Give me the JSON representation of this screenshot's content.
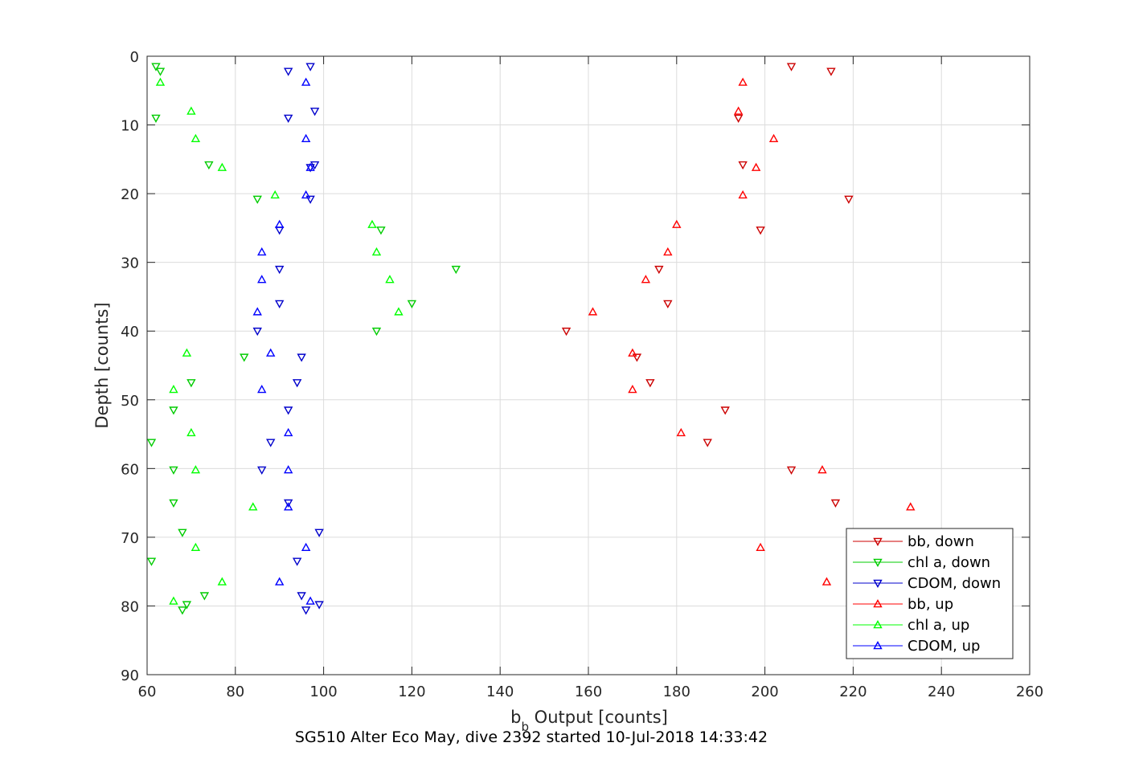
{
  "chart_data": {
    "type": "scatter",
    "title": "SG510 Alter Eco May, dive 2392 started 10-Jul-2018 14:33:42",
    "xlabel_main": "b",
    "xlabel_sub": "b",
    "xlabel_rest": " Output [counts]",
    "ylabel": "Depth [counts]",
    "xlim": [
      60,
      260
    ],
    "ylim": [
      0,
      90
    ],
    "y_reversed": true,
    "grid": true,
    "legend_position": "bottom-right",
    "xticks": [
      60,
      80,
      100,
      120,
      140,
      160,
      180,
      200,
      220,
      240,
      260
    ],
    "yticks": [
      0,
      10,
      20,
      30,
      40,
      50,
      60,
      70,
      80,
      90
    ],
    "series": [
      {
        "name": "bb, down",
        "color": "#cc0000",
        "marker": "triangle-down",
        "points": [
          [
            206,
            1.5
          ],
          [
            215,
            2.2
          ],
          [
            194,
            9
          ],
          [
            195,
            15.8
          ],
          [
            219,
            20.8
          ],
          [
            199,
            25.3
          ],
          [
            176,
            31
          ],
          [
            178,
            36
          ],
          [
            155,
            40
          ],
          [
            171,
            43.8
          ],
          [
            174,
            47.5
          ],
          [
            191,
            51.5
          ],
          [
            187,
            56.2
          ],
          [
            206,
            60.2
          ],
          [
            216,
            65
          ]
        ]
      },
      {
        "name": "chl a, down",
        "color": "#00cc00",
        "marker": "triangle-down",
        "points": [
          [
            62,
            1.5
          ],
          [
            63,
            2.2
          ],
          [
            62,
            9
          ],
          [
            74,
            15.8
          ],
          [
            85,
            20.8
          ],
          [
            113,
            25.3
          ],
          [
            130,
            31
          ],
          [
            120,
            36
          ],
          [
            112,
            40
          ],
          [
            82,
            43.8
          ],
          [
            70,
            47.5
          ],
          [
            66,
            51.5
          ],
          [
            61,
            56.2
          ],
          [
            66,
            60.2
          ],
          [
            66,
            65
          ],
          [
            68,
            69.3
          ],
          [
            61,
            73.5
          ],
          [
            73,
            78.5
          ],
          [
            69,
            79.8
          ],
          [
            68,
            80.6
          ]
        ]
      },
      {
        "name": "CDOM, down",
        "color": "#0000cc",
        "marker": "triangle-down",
        "points": [
          [
            97,
            1.5
          ],
          [
            92,
            2.2
          ],
          [
            98,
            8
          ],
          [
            92,
            9
          ],
          [
            98,
            15.8
          ],
          [
            97,
            16.2
          ],
          [
            97,
            20.8
          ],
          [
            90,
            25.3
          ],
          [
            90,
            31
          ],
          [
            90,
            36
          ],
          [
            85,
            40
          ],
          [
            95,
            43.8
          ],
          [
            94,
            47.5
          ],
          [
            92,
            51.5
          ],
          [
            88,
            56.2
          ],
          [
            86,
            60.2
          ],
          [
            92,
            65
          ],
          [
            99,
            69.3
          ],
          [
            94,
            73.5
          ],
          [
            95,
            78.5
          ],
          [
            99,
            79.8
          ],
          [
            96,
            80.6
          ]
        ]
      },
      {
        "name": "bb, up",
        "color": "#ff0000",
        "marker": "triangle-up",
        "points": [
          [
            195,
            3.8
          ],
          [
            194,
            8
          ],
          [
            202,
            12
          ],
          [
            198,
            16.2
          ],
          [
            195,
            20.2
          ],
          [
            180,
            24.5
          ],
          [
            178,
            28.5
          ],
          [
            173,
            32.5
          ],
          [
            161,
            37.2
          ],
          [
            170,
            43.2
          ],
          [
            170,
            48.5
          ],
          [
            181,
            54.8
          ],
          [
            213,
            60.2
          ],
          [
            233,
            65.6
          ],
          [
            199,
            71.5
          ],
          [
            214,
            76.5
          ]
        ]
      },
      {
        "name": "chl a, up",
        "color": "#00ff00",
        "marker": "triangle-up",
        "points": [
          [
            63,
            3.8
          ],
          [
            70,
            8
          ],
          [
            71,
            12
          ],
          [
            77,
            16.2
          ],
          [
            89,
            20.2
          ],
          [
            111,
            24.5
          ],
          [
            112,
            28.5
          ],
          [
            115,
            32.5
          ],
          [
            117,
            37.2
          ],
          [
            69,
            43.2
          ],
          [
            66,
            48.5
          ],
          [
            70,
            54.8
          ],
          [
            71,
            60.2
          ],
          [
            84,
            65.6
          ],
          [
            71,
            71.5
          ],
          [
            77,
            76.5
          ],
          [
            66,
            79.3
          ]
        ]
      },
      {
        "name": "CDOM, up",
        "color": "#0000ff",
        "marker": "triangle-up",
        "points": [
          [
            96,
            3.8
          ],
          [
            96,
            12
          ],
          [
            97,
            16.2
          ],
          [
            96,
            20.2
          ],
          [
            90,
            24.5
          ],
          [
            86,
            28.5
          ],
          [
            86,
            32.5
          ],
          [
            85,
            37.2
          ],
          [
            88,
            43.2
          ],
          [
            86,
            48.5
          ],
          [
            92,
            54.8
          ],
          [
            92,
            60.2
          ],
          [
            92,
            65.6
          ],
          [
            96,
            71.5
          ],
          [
            90,
            76.5
          ],
          [
            97,
            79.3
          ]
        ]
      }
    ]
  }
}
